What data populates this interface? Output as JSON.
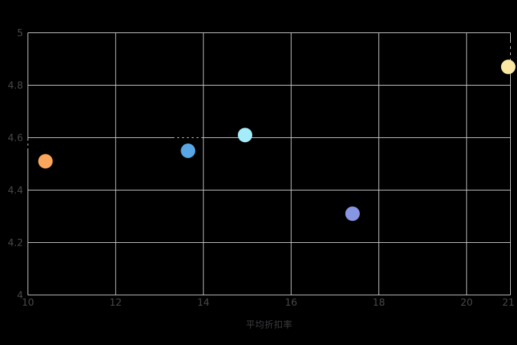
{
  "chart_data": {
    "type": "scatter",
    "title": "",
    "xlabel": "平均折扣率",
    "ylabel": "",
    "xlim": [
      10,
      21
    ],
    "ylim": [
      4,
      5
    ],
    "xtick_labels": [
      "10",
      "12",
      "14",
      "16",
      "18",
      "20",
      "21"
    ],
    "xtick_values": [
      10,
      12,
      14,
      16,
      18,
      20,
      21
    ],
    "ytick_labels": [
      "5",
      "4.8",
      "4.6",
      "4.4",
      "4.2",
      "4"
    ],
    "ytick_values": [
      5,
      4.8,
      4.6,
      4.4,
      4.2,
      4
    ],
    "grid": true,
    "legend": "none",
    "marker_diameter_px": 21,
    "colors": {
      "background": "#000000",
      "gridline": "#cfcfcf",
      "tick_label": "#48484c",
      "axis_label": "#3e3e42"
    },
    "points": [
      {
        "x": 10.4,
        "y": 4.51,
        "color": "#fca55d",
        "color_name": "orange"
      },
      {
        "x": 13.65,
        "y": 4.55,
        "color": "#58a6e3",
        "color_name": "blue"
      },
      {
        "x": 14.95,
        "y": 4.61,
        "color": "#a4ecfa",
        "color_name": "light-cyan"
      },
      {
        "x": 17.4,
        "y": 4.31,
        "color": "#8795e3",
        "color_name": "periwinkle"
      },
      {
        "x": 20.95,
        "y": 4.87,
        "color": "#fae7a4",
        "color_name": "pale-yellow"
      }
    ]
  }
}
